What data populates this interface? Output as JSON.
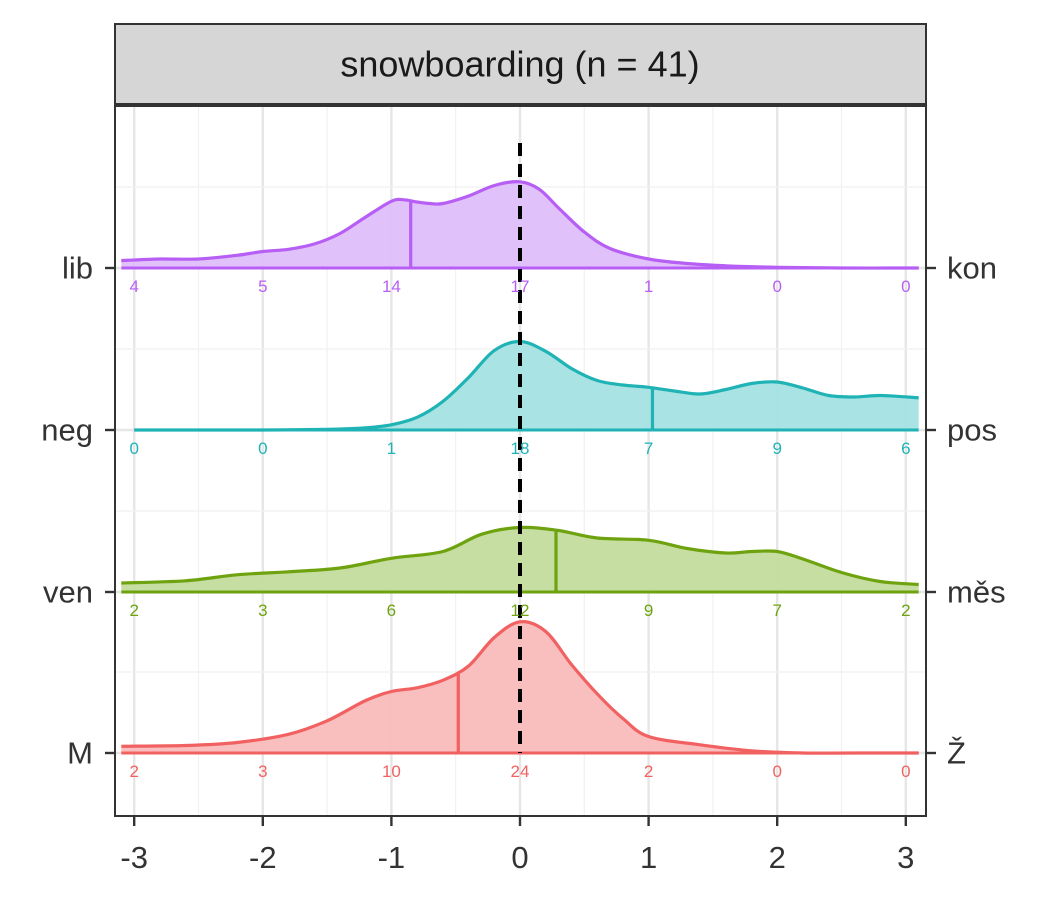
{
  "chart_data": {
    "type": "area",
    "subtype": "ridgeline-density",
    "title": "snowboarding (n = 41)",
    "xlim": [
      -3.1,
      3.1
    ],
    "x_ticks": [
      -3,
      -2,
      -1,
      0,
      1,
      2,
      3
    ],
    "x_tick_labels": [
      "-3",
      "-2",
      "-1",
      "0",
      "1",
      "2",
      "3"
    ],
    "reference_line": {
      "x": 0,
      "style": "dashed",
      "color": "#000000"
    },
    "grid": true,
    "count_bins": [
      -3,
      -2,
      -1,
      0,
      1,
      2,
      3
    ],
    "series": [
      {
        "left_label": "lib",
        "right_label": "kon",
        "color": "#b75ff5",
        "fill": "#dfbef9",
        "mean": -0.85,
        "counts": [
          "4",
          "5",
          "14",
          "17",
          "1",
          "0",
          "0"
        ],
        "density_x": [
          -3.1,
          -2.8,
          -2.5,
          -2.2,
          -2.0,
          -1.8,
          -1.6,
          -1.4,
          -1.2,
          -1.0,
          -0.9,
          -0.8,
          -0.7,
          -0.6,
          -0.4,
          -0.2,
          0.0,
          0.15,
          0.3,
          0.5,
          0.7,
          1.0,
          1.3,
          1.6,
          2.0,
          2.5,
          3.1
        ],
        "density_y": [
          0.1,
          0.12,
          0.12,
          0.17,
          0.22,
          0.25,
          0.32,
          0.46,
          0.68,
          0.89,
          0.91,
          0.88,
          0.86,
          0.86,
          0.96,
          1.1,
          1.15,
          1.05,
          0.8,
          0.48,
          0.26,
          0.12,
          0.06,
          0.03,
          0.01,
          0.0,
          0.0
        ]
      },
      {
        "left_label": "neg",
        "right_label": "pos",
        "color": "#1fb3b6",
        "fill": "#a4e1e2",
        "mean": 1.03,
        "counts": [
          "0",
          "0",
          "1",
          "18",
          "7",
          "9",
          "6"
        ],
        "density_x": [
          -3.0,
          -2.5,
          -2.0,
          -1.5,
          -1.2,
          -1.0,
          -0.8,
          -0.6,
          -0.4,
          -0.2,
          0.0,
          0.2,
          0.4,
          0.6,
          0.8,
          1.0,
          1.2,
          1.4,
          1.6,
          1.8,
          2.0,
          2.2,
          2.4,
          2.6,
          2.8,
          3.1
        ],
        "density_y": [
          0.0,
          0.0,
          0.0,
          0.01,
          0.03,
          0.07,
          0.17,
          0.38,
          0.7,
          1.06,
          1.18,
          1.05,
          0.82,
          0.66,
          0.6,
          0.57,
          0.52,
          0.48,
          0.54,
          0.62,
          0.64,
          0.56,
          0.46,
          0.44,
          0.46,
          0.43
        ]
      },
      {
        "left_label": "ven",
        "right_label": "měs",
        "color": "#6ea30f",
        "fill": "#c4dc9d",
        "mean": 0.28,
        "counts": [
          "2",
          "3",
          "6",
          "12",
          "9",
          "7",
          "2"
        ],
        "density_x": [
          -3.1,
          -2.6,
          -2.2,
          -1.8,
          -1.4,
          -1.0,
          -0.6,
          -0.3,
          0.0,
          0.3,
          0.6,
          1.0,
          1.3,
          1.6,
          1.8,
          2.0,
          2.2,
          2.5,
          2.8,
          3.1
        ],
        "density_y": [
          0.12,
          0.15,
          0.23,
          0.27,
          0.32,
          0.45,
          0.54,
          0.77,
          0.86,
          0.82,
          0.72,
          0.69,
          0.58,
          0.52,
          0.54,
          0.54,
          0.44,
          0.26,
          0.14,
          0.1
        ]
      },
      {
        "left_label": "M",
        "right_label": "Ž",
        "color": "#f26161",
        "fill": "#f9baba",
        "mean": -0.48,
        "counts": [
          "2",
          "3",
          "10",
          "24",
          "2",
          "0",
          "0"
        ],
        "density_x": [
          -3.1,
          -2.6,
          -2.2,
          -1.8,
          -1.5,
          -1.2,
          -1.0,
          -0.8,
          -0.6,
          -0.4,
          -0.2,
          0.0,
          0.2,
          0.4,
          0.6,
          0.8,
          1.0,
          1.4,
          1.8,
          2.2,
          2.6,
          3.1
        ],
        "density_y": [
          0.09,
          0.1,
          0.14,
          0.25,
          0.43,
          0.7,
          0.82,
          0.87,
          0.97,
          1.16,
          1.54,
          1.75,
          1.62,
          1.18,
          0.79,
          0.46,
          0.22,
          0.11,
          0.03,
          0.0,
          0.0,
          0.0
        ]
      }
    ]
  }
}
